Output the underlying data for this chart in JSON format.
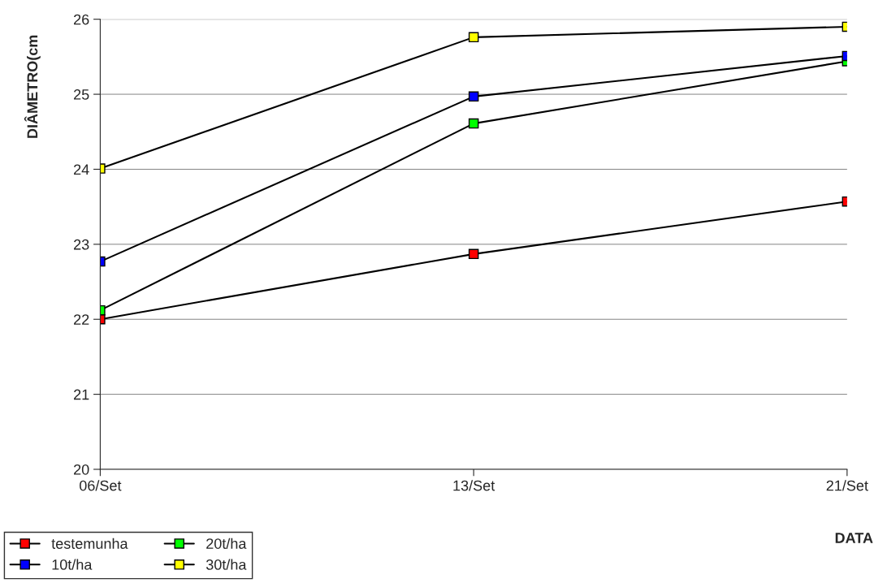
{
  "chart_data": {
    "type": "line",
    "ylabel": "DIÂMETRO(cm",
    "xlabel": "DATA",
    "categories": [
      "06/Set",
      "13/Set",
      "21/Set"
    ],
    "series": [
      {
        "name": "testemunha",
        "color": "#ff0000",
        "values": [
          22.0,
          22.87,
          23.57
        ]
      },
      {
        "name": "20t/ha",
        "color": "#00ff00",
        "values": [
          22.12,
          24.61,
          25.44
        ]
      },
      {
        "name": "10t/ha",
        "color": "#0000ff",
        "values": [
          22.77,
          24.97,
          25.51
        ]
      },
      {
        "name": "30t/ha",
        "color": "#ffff00",
        "values": [
          24.01,
          25.76,
          25.9
        ]
      }
    ],
    "ylim": [
      20,
      26
    ],
    "yticks": [
      20,
      21,
      22,
      23,
      24,
      25,
      26
    ],
    "grid": "y",
    "legend": "bottom left",
    "marker": "square",
    "line_style": "solid"
  }
}
